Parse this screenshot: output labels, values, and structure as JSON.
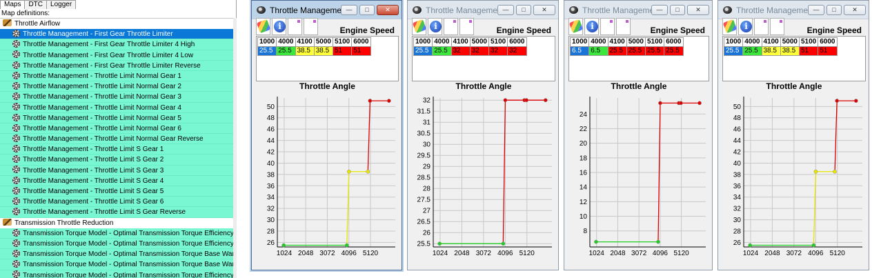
{
  "left_panel": {
    "tabs": [
      "Maps",
      "DTC",
      "Logger"
    ],
    "map_definitions_label": "Map definitions:",
    "tree": [
      {
        "type": "category",
        "label": "Throttle Airflow"
      },
      {
        "type": "item",
        "label": "Throttle Management - First Gear Throttle Limiter",
        "selected": true
      },
      {
        "type": "item",
        "label": "Throttle Management - First Gear Throttle Limiter 4 High"
      },
      {
        "type": "item",
        "label": "Throttle Management - First Gear Throttle Limiter 4 Low"
      },
      {
        "type": "item",
        "label": "Throttle Management - First Gear Throttle Limiter Reverse"
      },
      {
        "type": "item",
        "label": "Throttle Management - Throttle Limit Normal Gear 1"
      },
      {
        "type": "item",
        "label": "Throttle Management - Throttle Limit Normal Gear 2"
      },
      {
        "type": "item",
        "label": "Throttle Management - Throttle Limit Normal Gear 3"
      },
      {
        "type": "item",
        "label": "Throttle Management - Throttle Limit Normal Gear 4"
      },
      {
        "type": "item",
        "label": "Throttle Management - Throttle Limit Normal Gear 5"
      },
      {
        "type": "item",
        "label": "Throttle Management - Throttle Limit Normal Gear 6"
      },
      {
        "type": "item",
        "label": "Throttle Management - Throttle Limit Normal Gear Reverse"
      },
      {
        "type": "item",
        "label": "Throttle Management - Throttle Limit S Gear 1"
      },
      {
        "type": "item",
        "label": "Throttle Management - Throttle Limit S Gear 2"
      },
      {
        "type": "item",
        "label": "Throttle Management - Throttle Limit S Gear 3"
      },
      {
        "type": "item",
        "label": "Throttle Management - Throttle Limit S Gear 4"
      },
      {
        "type": "item",
        "label": "Throttle Management - Throttle Limit S Gear 5"
      },
      {
        "type": "item",
        "label": "Throttle Management - Throttle Limit S Gear 6"
      },
      {
        "type": "item",
        "label": "Throttle Management - Throttle Limit S Gear Reverse"
      },
      {
        "type": "category",
        "label": "Transmission Throttle Reduction"
      },
      {
        "type": "item",
        "label": "Transmission Torque Model - Optimal Transmission Torque  Efficiency Learn"
      },
      {
        "type": "item",
        "label": "Transmission Torque Model - Optimal Transmission Torque  Efficiency Learn"
      },
      {
        "type": "item",
        "label": "Transmission Torque Model - Optimal Transmission Torque Base Warm Engi"
      },
      {
        "type": "item",
        "label": "Transmission Torque Model - Optimal Transmission Torque Base Warm Engi"
      },
      {
        "type": "item",
        "label": "Transmission Torque Model - Optimal Transmission Torque Efficiency Learn"
      }
    ]
  },
  "colors": {
    "tree_item_bg": "#79f7d3",
    "tree_selected_bg": "#0a78d7",
    "cell_blue": "#1a74d8",
    "cell_green": "#3de63d",
    "cell_yellow": "#ffff3a",
    "cell_red": "#ff0000",
    "line_green": "#22cc22",
    "line_yellow": "#e6e600",
    "line_red": "#dd0000"
  },
  "windows": [
    {
      "title": "Throttle Manageme...",
      "engine_speed_label": "Engine Speed",
      "headers": [
        "1000",
        "4000",
        "4100",
        "5000",
        "5100",
        "6000"
      ],
      "values": [
        "25.5",
        "25.5",
        "38.5",
        "38.5",
        "51",
        "51"
      ],
      "cell_colors": [
        "blue",
        "green",
        "yellow",
        "yellow",
        "red",
        "red"
      ],
      "throttle_angle_label": "Throttle Angle"
    },
    {
      "title": "Throttle Manageme...",
      "engine_speed_label": "Engine Speed",
      "headers": [
        "1000",
        "4000",
        "4100",
        "5000",
        "5100",
        "6000"
      ],
      "values": [
        "25.5",
        "25.5",
        "32",
        "32",
        "32",
        "32"
      ],
      "cell_colors": [
        "blue",
        "green",
        "red",
        "red",
        "red",
        "red"
      ],
      "throttle_angle_label": "Throttle Angle"
    },
    {
      "title": "Throttle Manageme...",
      "engine_speed_label": "Engine Speed",
      "headers": [
        "1000",
        "4000",
        "4100",
        "5000",
        "5100",
        "6000"
      ],
      "values": [
        "6.5",
        "6.5",
        "25.5",
        "25.5",
        "25.5",
        "25.5"
      ],
      "cell_colors": [
        "blue",
        "green",
        "red",
        "red",
        "red",
        "red"
      ],
      "throttle_angle_label": "Throttle Angle"
    },
    {
      "title": "Throttle Manageme...",
      "engine_speed_label": "Engine Speed",
      "headers": [
        "1000",
        "4000",
        "4100",
        "5000",
        "5100",
        "6000"
      ],
      "values": [
        "25.5",
        "25.5",
        "38.5",
        "38.5",
        "51",
        "51"
      ],
      "cell_colors": [
        "blue",
        "green",
        "yellow",
        "yellow",
        "red",
        "red"
      ],
      "throttle_angle_label": "Throttle Angle"
    }
  ],
  "chart_data": [
    {
      "type": "line",
      "x": [
        1000,
        4000,
        4100,
        5000,
        5100,
        6000
      ],
      "y": [
        25.5,
        25.5,
        38.5,
        38.5,
        51,
        51
      ],
      "segment_colors": [
        "green",
        "yellow",
        "yellow",
        "red",
        "red"
      ],
      "x_ticks": [
        "1024",
        "2048",
        "3072",
        "4096",
        "5120"
      ],
      "y_ticks": [
        "26",
        "28",
        "30",
        "32",
        "34",
        "36",
        "38",
        "40",
        "42",
        "44",
        "46",
        "48",
        "50"
      ],
      "xlim": [
        700,
        6300
      ],
      "ylim": [
        25.2,
        51.5
      ],
      "grid": true
    },
    {
      "type": "line",
      "x": [
        1000,
        4000,
        4100,
        5000,
        5100,
        6000
      ],
      "y": [
        25.5,
        25.5,
        32,
        32,
        32,
        32
      ],
      "segment_colors": [
        "green",
        "red",
        "red",
        "red",
        "red"
      ],
      "x_ticks": [
        "1024",
        "2048",
        "3072",
        "4096",
        "5120"
      ],
      "y_ticks": [
        "25.5",
        "26",
        "26.5",
        "27",
        "27.5",
        "28",
        "28.5",
        "29",
        "29.5",
        "30",
        "30.5",
        "31",
        "31.5",
        "32"
      ],
      "xlim": [
        700,
        6300
      ],
      "ylim": [
        25.35,
        32.1
      ],
      "grid": true
    },
    {
      "type": "line",
      "x": [
        1000,
        4000,
        4100,
        5000,
        5100,
        6000
      ],
      "y": [
        6.5,
        6.5,
        25.5,
        25.5,
        25.5,
        25.5
      ],
      "segment_colors": [
        "green",
        "red",
        "red",
        "red",
        "red"
      ],
      "x_ticks": [
        "1024",
        "2048",
        "3072",
        "4096",
        "5120"
      ],
      "y_ticks": [
        "8",
        "10",
        "12",
        "14",
        "16",
        "18",
        "20",
        "22",
        "24"
      ],
      "xlim": [
        700,
        6300
      ],
      "ylim": [
        5.8,
        26.2
      ],
      "grid": true
    },
    {
      "type": "line",
      "x": [
        1000,
        4000,
        4100,
        5000,
        5100,
        6000
      ],
      "y": [
        25.5,
        25.5,
        38.5,
        38.5,
        51,
        51
      ],
      "segment_colors": [
        "green",
        "yellow",
        "yellow",
        "red",
        "red"
      ],
      "x_ticks": [
        "1024",
        "2048",
        "3072",
        "4096",
        "5120"
      ],
      "y_ticks": [
        "26",
        "28",
        "30",
        "32",
        "34",
        "36",
        "38",
        "40",
        "42",
        "44",
        "46",
        "48",
        "50"
      ],
      "xlim": [
        700,
        6300
      ],
      "ylim": [
        25.2,
        51.5
      ],
      "grid": true
    }
  ]
}
